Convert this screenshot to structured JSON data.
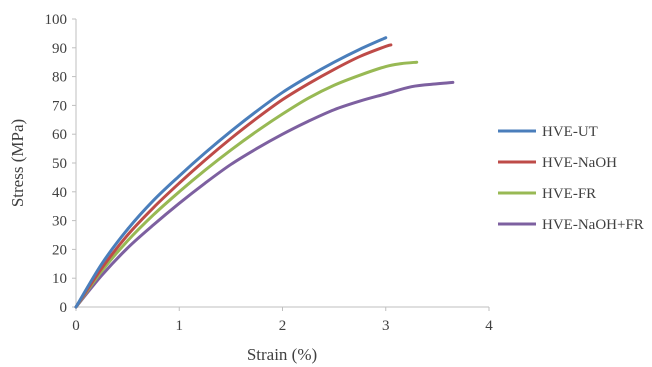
{
  "chart_data": {
    "type": "line",
    "title": "",
    "xlabel": "Strain (%)",
    "ylabel": "Stress (MPa)",
    "xlim": [
      0,
      4
    ],
    "ylim": [
      0,
      100
    ],
    "xticks": [
      0,
      1,
      2,
      3,
      4
    ],
    "yticks": [
      0,
      10,
      20,
      30,
      40,
      50,
      60,
      70,
      80,
      90,
      100
    ],
    "grid": false,
    "legend_position": "right",
    "series": [
      {
        "name": "HVE-UT",
        "color": "#4a7ebb",
        "x": [
          0,
          0.25,
          0.5,
          0.75,
          1.0,
          1.25,
          1.5,
          1.75,
          2.0,
          2.25,
          2.5,
          2.75,
          3.0
        ],
        "y": [
          0,
          15,
          27,
          37,
          45.5,
          53.5,
          61,
          68,
          74.5,
          80,
          85,
          89.5,
          93.5
        ]
      },
      {
        "name": "HVE-NaOH",
        "color": "#be4b48",
        "x": [
          0,
          0.25,
          0.5,
          0.75,
          1.0,
          1.25,
          1.5,
          1.75,
          2.0,
          2.25,
          2.5,
          2.75,
          3.0,
          3.05
        ],
        "y": [
          0,
          13.5,
          25,
          34.5,
          43,
          51,
          58.5,
          65.5,
          72,
          77.5,
          82.5,
          87,
          90.5,
          91
        ]
      },
      {
        "name": "HVE-FR",
        "color": "#98b954",
        "x": [
          0,
          0.25,
          0.5,
          0.75,
          1.0,
          1.25,
          1.5,
          1.75,
          2.0,
          2.25,
          2.5,
          2.75,
          3.0,
          3.15,
          3.3
        ],
        "y": [
          0,
          12.5,
          23,
          32,
          40,
          47.5,
          54.5,
          61,
          67,
          72.5,
          77,
          80.5,
          83.5,
          84.5,
          85
        ]
      },
      {
        "name": "HVE-NaOH+FR",
        "color": "#7d60a0",
        "x": [
          0,
          0.25,
          0.5,
          0.75,
          1.0,
          1.25,
          1.5,
          1.75,
          2.0,
          2.25,
          2.5,
          2.75,
          3.0,
          3.25,
          3.5,
          3.65
        ],
        "y": [
          0,
          11,
          20.5,
          28.5,
          36,
          43,
          49.5,
          55,
          60,
          64.5,
          68.5,
          71.5,
          74,
          76.5,
          77.5,
          78
        ]
      }
    ]
  }
}
